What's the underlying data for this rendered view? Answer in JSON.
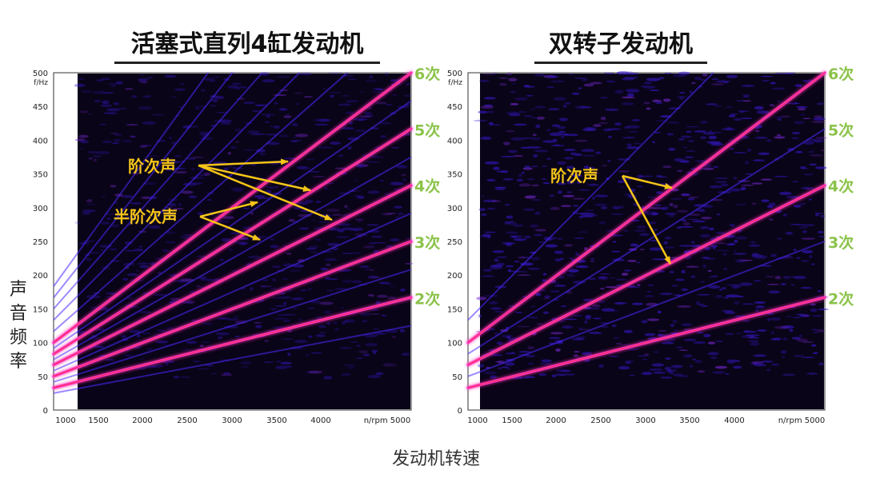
{
  "shared": {
    "ylabel": "声音频率",
    "xlabel": "发动机转速"
  },
  "chart_data": [
    {
      "type": "line",
      "title": "活塞式直列4缸发动机",
      "x_unit": "n/rpm",
      "y_unit": "f/Hz",
      "xlim": [
        1000,
        5000
      ],
      "ylim": [
        0,
        500
      ],
      "x_ticks": [
        1000,
        1500,
        2000,
        2500,
        3000,
        3500,
        4000,
        5000
      ],
      "y_ticks": [
        0,
        50,
        100,
        150,
        200,
        250,
        300,
        350,
        400,
        450,
        500
      ],
      "order_labels": [
        "2次",
        "3次",
        "4次",
        "5次",
        "6次"
      ],
      "series": [
        {
          "name": "2次",
          "x": [
            1000,
            5000
          ],
          "y": [
            33,
            167
          ]
        },
        {
          "name": "3次",
          "x": [
            1000,
            5000
          ],
          "y": [
            50,
            250
          ]
        },
        {
          "name": "4次",
          "x": [
            1000,
            5000
          ],
          "y": [
            67,
            333
          ]
        },
        {
          "name": "5次",
          "x": [
            1000,
            5000
          ],
          "y": [
            83,
            417
          ]
        },
        {
          "name": "6次",
          "x": [
            1000,
            5000
          ],
          "y": [
            100,
            500
          ]
        }
      ],
      "annotations": [
        {
          "text": "阶次声",
          "color": "#f5c518"
        },
        {
          "text": "半阶次声",
          "color": "#f5c518"
        }
      ]
    },
    {
      "type": "line",
      "title": "双转子发动机",
      "x_unit": "n/rpm",
      "y_unit": "f/Hz",
      "xlim": [
        1000,
        5000
      ],
      "ylim": [
        0,
        500
      ],
      "x_ticks": [
        1000,
        1500,
        2000,
        2500,
        3000,
        3500,
        4000,
        5000
      ],
      "y_ticks": [
        0,
        50,
        100,
        150,
        200,
        250,
        300,
        350,
        400,
        450,
        500
      ],
      "order_labels": [
        "2次",
        "3次",
        "4次",
        "5次",
        "6次"
      ],
      "series": [
        {
          "name": "2次",
          "x": [
            1000,
            5000
          ],
          "y": [
            33,
            167
          ]
        },
        {
          "name": "4次",
          "x": [
            1000,
            5000
          ],
          "y": [
            67,
            333
          ]
        },
        {
          "name": "6次",
          "x": [
            1000,
            5000
          ],
          "y": [
            100,
            500
          ]
        }
      ],
      "annotations": [
        {
          "text": "阶次声",
          "color": "#f5c518"
        }
      ]
    }
  ],
  "colors": {
    "background": "#0a0418",
    "order_line": "#ff33cc",
    "harmonic_hot": "#ff3355",
    "noise": "#3b1ad8",
    "order_label": "#8bc34a",
    "annotation": "#f5c518"
  }
}
